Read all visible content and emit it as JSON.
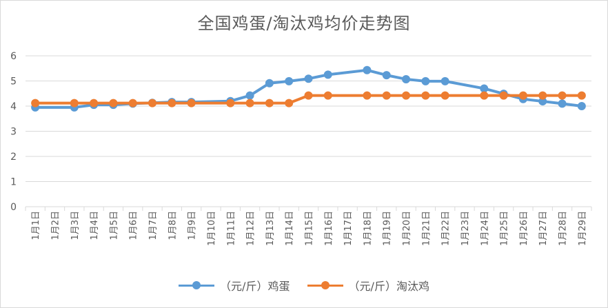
{
  "chart_data": {
    "type": "line",
    "title": "全国鸡蛋/淘汰鸡均价走势图",
    "categories": [
      "1月1日",
      "1月2日",
      "1月3日",
      "1月4日",
      "1月5日",
      "1月6日",
      "1月7日",
      "1月8日",
      "1月9日",
      "1月10日",
      "1月11日",
      "1月12日",
      "1月13日",
      "1月14日",
      "1月15日",
      "1月16日",
      "1月17日",
      "1月18日",
      "1月19日",
      "1月20日",
      "1月21日",
      "1月22日",
      "1月23日",
      "1月24日",
      "1月25日",
      "1月26日",
      "1月27日",
      "1月28日",
      "1月29日"
    ],
    "ylim": [
      0,
      6
    ],
    "yticks": [
      "0",
      "1",
      "2",
      "3",
      "4",
      "5",
      "6"
    ],
    "grid": "horizontal",
    "legend": "bottom",
    "series": [
      {
        "name": "（元/斤）鸡蛋",
        "color": "#5B9BD5",
        "points": [
          [
            0,
            3.95
          ],
          [
            2,
            3.95
          ],
          [
            3,
            4.05
          ],
          [
            4,
            4.05
          ],
          [
            5,
            4.1
          ],
          [
            6,
            4.13
          ],
          [
            7,
            4.16
          ],
          [
            8,
            4.16
          ],
          [
            10,
            4.2
          ],
          [
            11,
            4.42
          ],
          [
            12,
            4.91
          ],
          [
            13,
            4.99
          ],
          [
            14,
            5.09
          ],
          [
            15,
            5.25
          ],
          [
            17,
            5.43
          ],
          [
            18,
            5.23
          ],
          [
            19,
            5.07
          ],
          [
            20,
            4.99
          ],
          [
            21,
            4.99
          ],
          [
            23,
            4.7
          ],
          [
            24,
            4.49
          ],
          [
            25,
            4.28
          ],
          [
            26,
            4.19
          ],
          [
            27,
            4.1
          ],
          [
            28,
            4.0
          ]
        ]
      },
      {
        "name": "（元/斤）淘汰鸡",
        "color": "#ED7D31",
        "points": [
          [
            0,
            4.12
          ],
          [
            2,
            4.12
          ],
          [
            3,
            4.12
          ],
          [
            4,
            4.12
          ],
          [
            5,
            4.12
          ],
          [
            6,
            4.12
          ],
          [
            7,
            4.12
          ],
          [
            8,
            4.12
          ],
          [
            10,
            4.12
          ],
          [
            11,
            4.12
          ],
          [
            12,
            4.12
          ],
          [
            13,
            4.12
          ],
          [
            14,
            4.42
          ],
          [
            15,
            4.42
          ],
          [
            17,
            4.42
          ],
          [
            18,
            4.42
          ],
          [
            19,
            4.42
          ],
          [
            20,
            4.42
          ],
          [
            21,
            4.42
          ],
          [
            23,
            4.42
          ],
          [
            24,
            4.42
          ],
          [
            25,
            4.42
          ],
          [
            26,
            4.42
          ],
          [
            27,
            4.42
          ],
          [
            28,
            4.42
          ]
        ]
      }
    ]
  }
}
